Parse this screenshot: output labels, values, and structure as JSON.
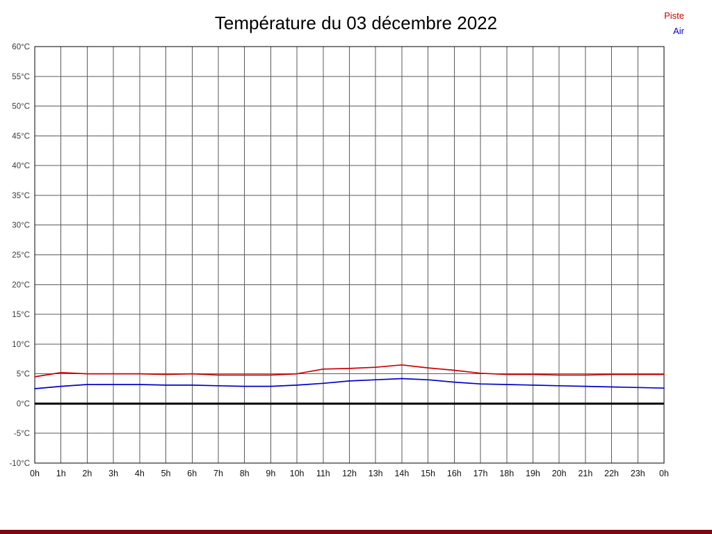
{
  "page": {
    "title": "Température du 03 décembre 2022"
  },
  "legend": {
    "items": [
      {
        "label": "Piste",
        "color": "#cc0000"
      },
      {
        "label": "Air",
        "color": "#0000cc"
      }
    ]
  },
  "footer": {
    "bar_color": "#7a0a12"
  },
  "chart_data": {
    "type": "line",
    "title": "Température du 03 décembre 2022",
    "xlabel": "",
    "ylabel": "",
    "ylim": [
      -10,
      60
    ],
    "ytick_step": 5,
    "ytick_suffix": "°C",
    "grid": true,
    "zero_line": true,
    "legend_position": "top-right",
    "x_labels": [
      "0h",
      "1h",
      "2h",
      "3h",
      "4h",
      "5h",
      "6h",
      "7h",
      "8h",
      "9h",
      "10h",
      "11h",
      "12h",
      "13h",
      "14h",
      "15h",
      "16h",
      "17h",
      "18h",
      "19h",
      "20h",
      "21h",
      "22h",
      "23h",
      "0h"
    ],
    "series": [
      {
        "name": "Piste",
        "color": "#cc0000",
        "values": [
          4.5,
          5.2,
          5.0,
          5.0,
          5.0,
          4.9,
          5.0,
          4.8,
          4.8,
          4.8,
          5.0,
          5.8,
          5.9,
          6.1,
          6.5,
          6.0,
          5.6,
          5.1,
          4.9,
          4.9,
          4.8,
          4.8,
          4.9,
          4.9,
          4.9
        ]
      },
      {
        "name": "Air",
        "color": "#0000cc",
        "values": [
          2.5,
          2.9,
          3.2,
          3.2,
          3.2,
          3.1,
          3.1,
          3.0,
          2.9,
          2.9,
          3.1,
          3.4,
          3.8,
          4.0,
          4.2,
          4.0,
          3.6,
          3.3,
          3.2,
          3.1,
          3.0,
          2.9,
          2.8,
          2.7,
          2.6
        ]
      }
    ]
  }
}
